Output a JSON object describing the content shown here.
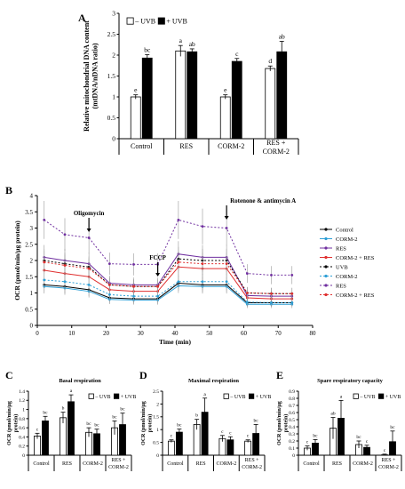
{
  "chart_data": [
    {
      "panel": "A",
      "type": "bar",
      "ylabel_lines": [
        "Relative mitochondrial DNA content",
        "(mtDNA/nDNA ratio)"
      ],
      "ylim": [
        0,
        3
      ],
      "yticks": [
        "0",
        "0.5",
        "1",
        "1.5",
        "2",
        "2.5",
        "3"
      ],
      "categories": [
        [
          "Control"
        ],
        [
          "RES"
        ],
        [
          "CORM-2"
        ],
        [
          "RES +",
          "CORM-2"
        ]
      ],
      "series": [
        {
          "name": "– UVB",
          "color": "#ffffff",
          "values": [
            1.0,
            2.1,
            1.0,
            1.68
          ],
          "errors": [
            0.05,
            0.13,
            0.05,
            0.06
          ],
          "letters": [
            "e",
            "a",
            "e",
            "d"
          ]
        },
        {
          "name": "+ UVB",
          "color": "#000000",
          "values": [
            1.93,
            2.08,
            1.85,
            2.08
          ],
          "errors": [
            0.08,
            0.07,
            0.07,
            0.25
          ],
          "letters": [
            "bc",
            "ab",
            "c",
            "ab"
          ]
        }
      ],
      "legend": {
        "swatches": [
          "□",
          "■"
        ],
        "labels": [
          "– UVB",
          "+ UVB"
        ]
      }
    },
    {
      "panel": "B",
      "type": "line",
      "ylabel": "OCR (pmol/min/µg protein)",
      "xlabel": "Time (min)",
      "xlim": [
        0,
        80
      ],
      "ylim": [
        0,
        4
      ],
      "xticks": [
        "0",
        "10",
        "20",
        "30",
        "40",
        "50",
        "60",
        "70",
        "80"
      ],
      "yticks": [
        "0",
        "0.5",
        "1",
        "1.5",
        "2",
        "2.5",
        "3",
        "3.5",
        "4"
      ],
      "x": [
        2,
        8,
        15,
        21,
        28,
        35,
        41,
        48,
        55,
        61,
        68,
        74
      ],
      "annotations": [
        "Oligomycin",
        "FCCP",
        "Rotenone & antimycin A"
      ],
      "annotation_x": [
        15,
        35,
        55
      ],
      "series": [
        {
          "name": "Control",
          "color": "#000000",
          "dash": false,
          "values": [
            1.25,
            1.2,
            1.1,
            0.85,
            0.82,
            0.82,
            1.3,
            1.25,
            1.25,
            0.7,
            0.7,
            0.7
          ]
        },
        {
          "name": "CORM-2",
          "color": "#2e9fd6",
          "dash": false,
          "values": [
            1.2,
            1.15,
            1.05,
            0.8,
            0.78,
            0.78,
            1.22,
            1.2,
            1.2,
            0.65,
            0.65,
            0.65
          ]
        },
        {
          "name": "RES",
          "color": "#7030a0",
          "dash": false,
          "values": [
            2.1,
            2.0,
            1.9,
            1.3,
            1.25,
            1.25,
            2.2,
            2.1,
            2.1,
            0.92,
            0.9,
            0.9
          ]
        },
        {
          "name": "CORM-2 + RES",
          "color": "#e03030",
          "dash": false,
          "values": [
            1.7,
            1.6,
            1.5,
            1.1,
            1.05,
            1.05,
            1.8,
            1.75,
            1.75,
            0.85,
            0.82,
            0.82
          ]
        },
        {
          "name": "UVB",
          "color": "#000000",
          "dash": true,
          "values": [
            2.0,
            1.9,
            1.8,
            1.25,
            1.2,
            1.2,
            2.05,
            2.0,
            2.0,
            1.0,
            0.98,
            0.98
          ]
        },
        {
          "name": "CORM-2",
          "color": "#2e9fd6",
          "dash": true,
          "values": [
            1.4,
            1.35,
            1.25,
            0.95,
            0.9,
            0.9,
            1.35,
            1.35,
            1.35,
            0.72,
            0.7,
            0.7
          ]
        },
        {
          "name": "RES",
          "color": "#7030a0",
          "dash": true,
          "values": [
            3.25,
            2.8,
            2.7,
            1.9,
            1.88,
            1.88,
            3.25,
            3.05,
            3.0,
            1.6,
            1.55,
            1.55
          ]
        },
        {
          "name": "CORM-2 + RES",
          "color": "#e03030",
          "dash": true,
          "values": [
            1.95,
            1.85,
            1.75,
            1.25,
            1.2,
            1.2,
            1.95,
            1.9,
            1.9,
            1.0,
            0.98,
            0.98
          ]
        }
      ]
    },
    {
      "panel": "C",
      "type": "bar",
      "title": "Basal respiration",
      "ylabel_lines": [
        "OCR (pmol/min/µg",
        "protein)"
      ],
      "ylim": [
        0,
        1.4
      ],
      "yticks": [
        "0",
        "0.2",
        "0.4",
        "0.6",
        "0.8",
        "1",
        "1.2",
        "1.4"
      ],
      "categories": [
        [
          "Control"
        ],
        [
          "RES"
        ],
        [
          "CORM-2"
        ],
        [
          "RES +",
          "CORM-2"
        ]
      ],
      "series": [
        {
          "name": "– UVB",
          "color": "#ffffff",
          "values": [
            0.42,
            0.82,
            0.5,
            0.6
          ],
          "errors": [
            0.06,
            0.12,
            0.1,
            0.15
          ],
          "letters": [
            "c",
            "b",
            "bc",
            "bc"
          ]
        },
        {
          "name": "+ UVB",
          "color": "#000000",
          "values": [
            0.75,
            1.17,
            0.47,
            0.67
          ],
          "errors": [
            0.1,
            0.15,
            0.1,
            0.25
          ],
          "letters": [
            "bc",
            "a",
            "bc",
            "bc"
          ]
        }
      ],
      "legend": {
        "swatches": [
          "□",
          "■"
        ],
        "labels": [
          "– UVB",
          "+ UVB"
        ]
      }
    },
    {
      "panel": "D",
      "type": "bar",
      "title": "Maximal respiration",
      "ylabel_lines": [
        "OCR (pmol/min/µg",
        "protein)"
      ],
      "ylim": [
        0,
        2.5
      ],
      "yticks": [
        "0",
        "0.5",
        "1",
        "1.5",
        "2",
        "2.5"
      ],
      "categories": [
        [
          "Control"
        ],
        [
          "RES"
        ],
        [
          "CORM-2"
        ],
        [
          "RES +",
          "CORM-2"
        ]
      ],
      "series": [
        {
          "name": "– UVB",
          "color": "#ffffff",
          "values": [
            0.55,
            1.2,
            0.65,
            0.55
          ],
          "errors": [
            0.05,
            0.2,
            0.12,
            0.05
          ],
          "letters": [
            "c",
            "b",
            "c",
            "c"
          ]
        },
        {
          "name": "+ UVB",
          "color": "#000000",
          "values": [
            0.9,
            1.68,
            0.6,
            0.85
          ],
          "errors": [
            0.12,
            0.55,
            0.12,
            0.35
          ],
          "letters": [
            "bc",
            "a",
            "c",
            "bc"
          ]
        }
      ],
      "legend": {
        "swatches": [
          "□",
          "■"
        ],
        "labels": [
          "– UVB",
          "+ UVB"
        ]
      }
    },
    {
      "panel": "E",
      "type": "bar",
      "title": "Spare respiratory capacity",
      "ylabel_lines": [
        "OCR (pmol/min/µg",
        "protein)"
      ],
      "ylim": [
        0,
        0.9
      ],
      "yticks": [
        "0",
        "0.1",
        "0.2",
        "0.3",
        "0.4",
        "0.5",
        "0.6",
        "0.7",
        "0.8",
        "0.9"
      ],
      "categories": [
        [
          "Control"
        ],
        [
          "RES"
        ],
        [
          "CORM-2"
        ],
        [
          "RES +",
          "CORM-2"
        ]
      ],
      "series": [
        {
          "name": "– UVB",
          "color": "#ffffff",
          "values": [
            0.1,
            0.38,
            0.15,
            0.005
          ],
          "errors": [
            0.03,
            0.15,
            0.05,
            0.01
          ],
          "letters": [
            "c",
            "ab",
            "bc",
            "c"
          ]
        },
        {
          "name": "+ UVB",
          "color": "#000000",
          "values": [
            0.17,
            0.52,
            0.11,
            0.19
          ],
          "errors": [
            0.05,
            0.25,
            0.03,
            0.15
          ],
          "letters": [
            "bc",
            "a",
            "c",
            "bc"
          ]
        }
      ],
      "legend": {
        "swatches": [
          "□",
          "■"
        ],
        "labels": [
          "– UVB",
          "+ UVB"
        ]
      }
    }
  ]
}
